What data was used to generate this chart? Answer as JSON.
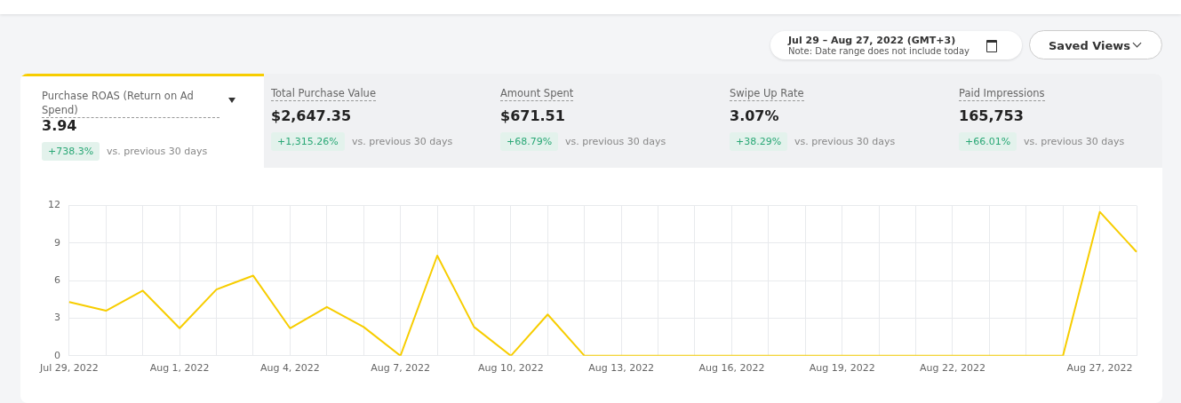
{
  "chart_data": [
    {
      "type": "other",
      "annotations": [
        "Jul 29 – Aug 27, 2022 (GMT+3)",
        "Note: Date range does not include today",
        "Saved Views",
        "Purchase ROAS (Return on Ad Spend)",
        "3.94",
        "+738.3%",
        "vs. previous 30 days",
        "Total Purchase Value",
        "$2,647.35",
        "+1,315.26%",
        "vs. previous 30 days",
        "Amount Spent",
        "$671.51",
        "+68.79%",
        "vs. previous 30 days",
        "Swipe Up Rate",
        "3.07%",
        "+38.29%",
        "vs. previous 30 days",
        "Paid Impressions",
        "165,753",
        "+66.01%",
        "vs. previous 30 days"
      ]
    },
    {
      "type": "line",
      "color": "#f7cd00",
      "grid": true,
      "marker": "none",
      "line_style": "solid",
      "categories": [
        "Jul 29, 2022",
        null,
        null,
        "Aug 1, 2022",
        null,
        null,
        "Aug 4, 2022",
        null,
        null,
        "Aug 7, 2022",
        null,
        null,
        "Aug 10, 2022",
        null,
        null,
        "Aug 13, 2022",
        null,
        null,
        "Aug 16, 2022",
        null,
        null,
        "Aug 19, 2022",
        null,
        null,
        "Aug 22, 2022",
        null,
        null,
        null,
        "Aug 27, 2022",
        null
      ],
      "values": [
        4.3,
        3.6,
        5.2,
        2.2,
        5.3,
        6.4,
        2.2,
        3.9,
        2.3,
        0,
        8.0,
        2.3,
        0,
        3.3,
        0,
        0,
        0,
        0,
        0,
        0,
        0,
        0,
        0,
        0,
        0,
        0,
        0,
        0,
        11.5,
        8.3
      ],
      "ylim": [
        0,
        12
      ],
      "yticks": [
        0,
        3,
        6,
        9,
        12
      ]
    }
  ]
}
